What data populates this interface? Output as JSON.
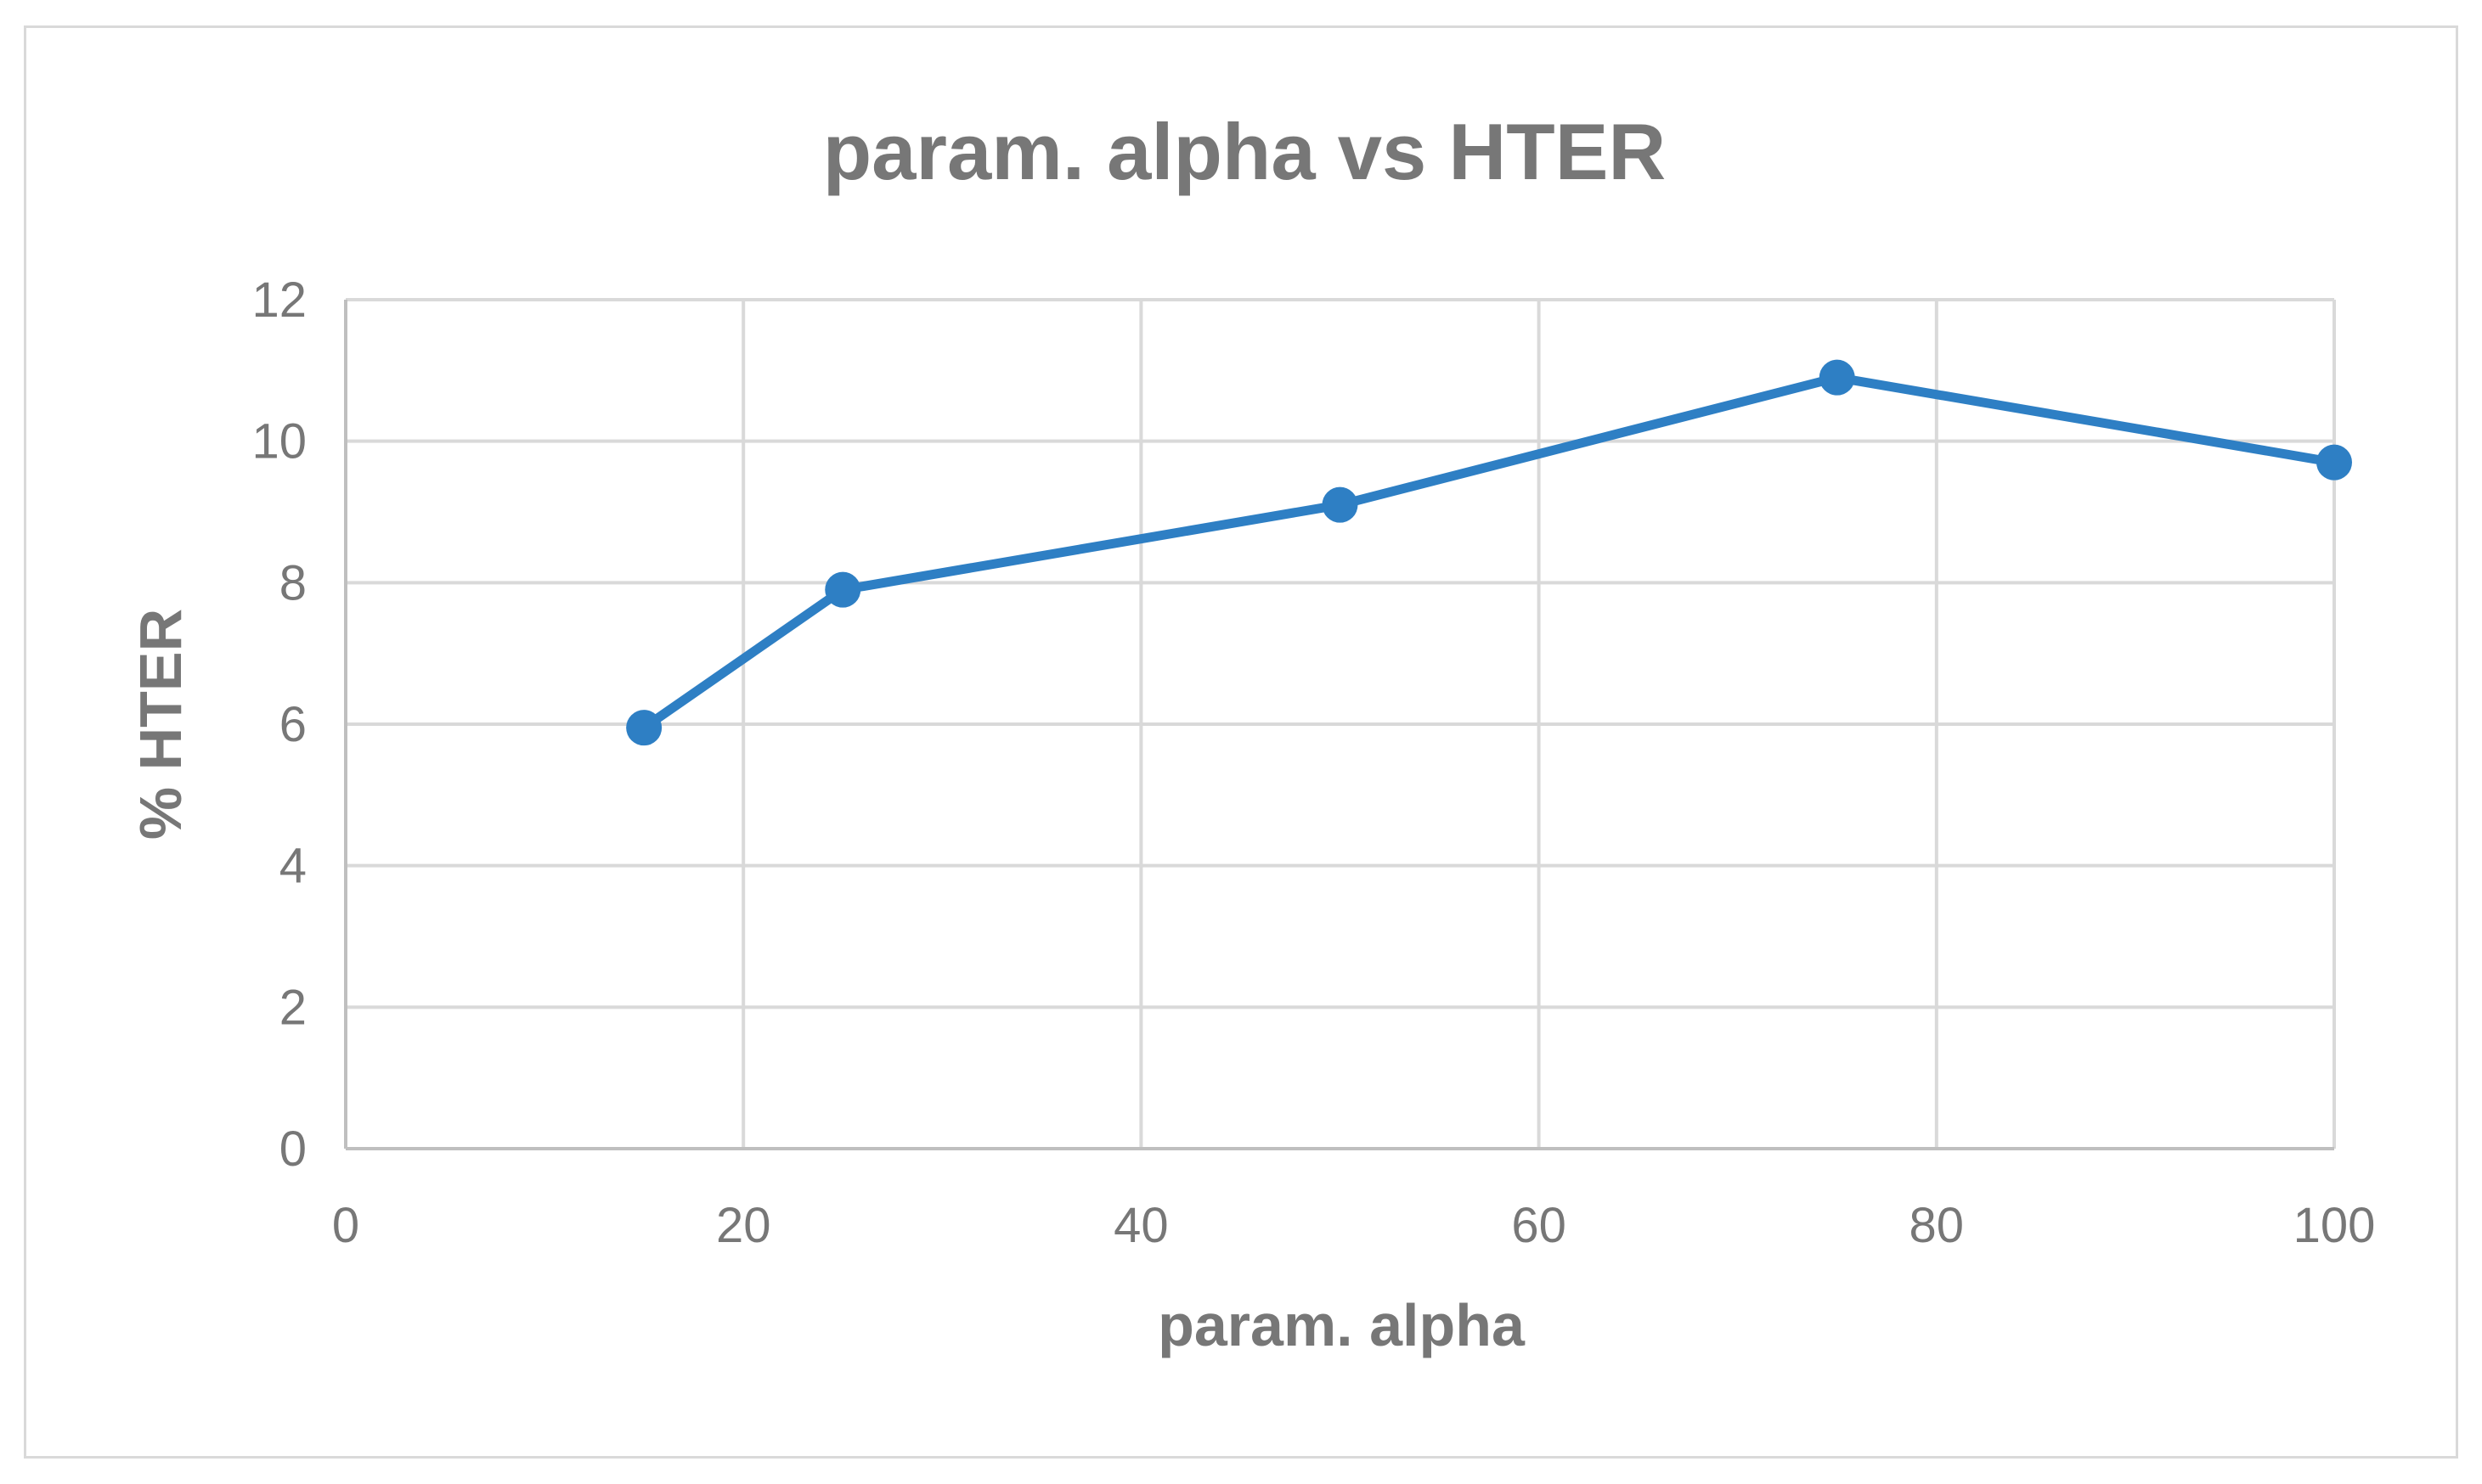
{
  "chart_data": {
    "type": "scatter",
    "title": "param. alpha vs HTER",
    "xlabel": "param. alpha",
    "ylabel": "% HTER",
    "xlim": [
      0,
      100
    ],
    "ylim": [
      0,
      12
    ],
    "x_ticks": [
      "0",
      "20",
      "40",
      "60",
      "80",
      "100"
    ],
    "y_ticks": [
      "0",
      "2",
      "4",
      "6",
      "8",
      "10",
      "12"
    ],
    "grid": true,
    "legend": "none",
    "lines_with_markers": true,
    "series": [
      {
        "color": "#2e7fc4",
        "points": [
          {
            "x": 15,
            "y": 5.95
          },
          {
            "x": 25,
            "y": 7.9
          },
          {
            "x": 50,
            "y": 9.1
          },
          {
            "x": 75,
            "y": 10.9
          },
          {
            "x": 100,
            "y": 9.7
          }
        ]
      }
    ]
  }
}
